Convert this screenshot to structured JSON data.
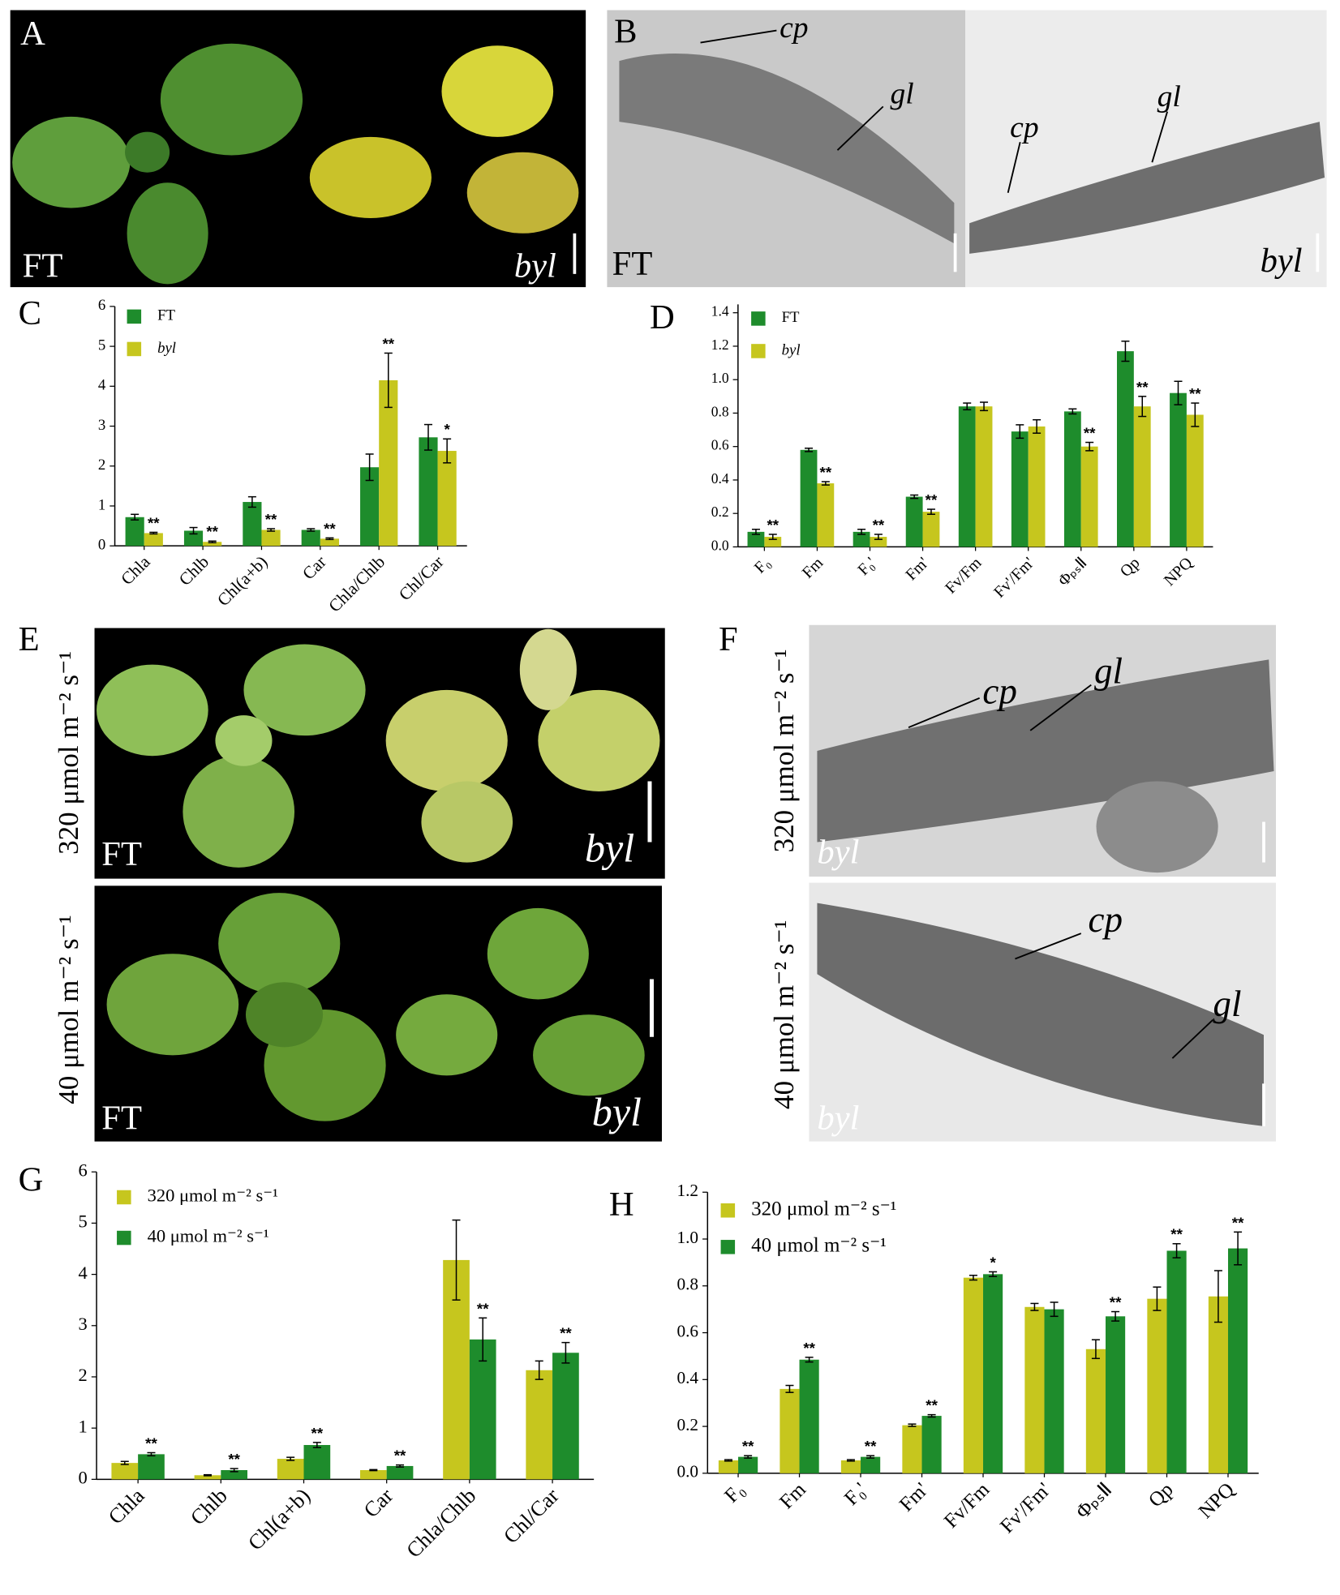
{
  "chart_data": [
    {
      "type": "bar",
      "panel": "C",
      "categories": [
        "Chla",
        "Chlb",
        "Chl(a+b)",
        "Car",
        "Chla/Chlb",
        "Chl/Car"
      ],
      "series": [
        {
          "name": "FT",
          "color": "#1e8c2c",
          "values": [
            0.72,
            0.38,
            1.1,
            0.4,
            1.97,
            2.72
          ],
          "errors": [
            0.07,
            0.08,
            0.13,
            0.03,
            0.33,
            0.32
          ],
          "significance": [
            null,
            null,
            null,
            null,
            null,
            null
          ]
        },
        {
          "name": "byl",
          "font_style": "italic",
          "color": "#c6c61e",
          "values": [
            0.32,
            0.1,
            0.4,
            0.18,
            4.15,
            2.38
          ],
          "errors": [
            0.02,
            0.02,
            0.03,
            0.02,
            0.68,
            0.3
          ],
          "significance": [
            "**",
            "**",
            "**",
            "**",
            "**",
            "*"
          ]
        }
      ],
      "ylim": [
        0,
        6
      ],
      "yticks": [
        0,
        1,
        2,
        3,
        4,
        5,
        6
      ]
    },
    {
      "type": "bar",
      "panel": "D",
      "categories": [
        "F₀",
        "Fm",
        "F₀'",
        "Fm'",
        "Fv/Fm",
        "Fv'/Fm'",
        "ΦₚₛⅡ",
        "Qp",
        "NPQ"
      ],
      "series": [
        {
          "name": "FT",
          "color": "#1e8c2c",
          "values": [
            0.09,
            0.58,
            0.09,
            0.3,
            0.84,
            0.69,
            0.81,
            1.17,
            0.92
          ],
          "errors": [
            0.015,
            0.01,
            0.015,
            0.01,
            0.02,
            0.04,
            0.015,
            0.06,
            0.07
          ],
          "significance": [
            null,
            null,
            null,
            null,
            null,
            null,
            null,
            null,
            null
          ]
        },
        {
          "name": "byl",
          "font_style": "italic",
          "color": "#c6c61e",
          "values": [
            0.06,
            0.38,
            0.06,
            0.21,
            0.84,
            0.72,
            0.6,
            0.84,
            0.79
          ],
          "errors": [
            0.015,
            0.01,
            0.015,
            0.015,
            0.025,
            0.04,
            0.025,
            0.06,
            0.07
          ],
          "significance": [
            "**",
            "**",
            "**",
            "**",
            null,
            null,
            "**",
            "**",
            "**"
          ]
        }
      ],
      "ylim": [
        0,
        1.45
      ],
      "yticks": [
        {
          "value": 0,
          "label": "0.0"
        },
        0.2,
        0.4,
        0.6,
        0.8,
        {
          "value": 1,
          "label": "1.0"
        },
        1.2,
        1.4
      ]
    },
    {
      "type": "bar",
      "panel": "G",
      "categories": [
        "Chla",
        "Chlb",
        "Chl(a+b)",
        "Car",
        "Chla/Chlb",
        "Chl/Car"
      ],
      "series": [
        {
          "name": "320 μmol m⁻² s⁻¹",
          "color": "#c6c61e",
          "values": [
            0.32,
            0.08,
            0.4,
            0.18,
            4.28,
            2.13
          ],
          "errors": [
            0.03,
            0.01,
            0.03,
            0.01,
            0.78,
            0.18
          ],
          "significance": [
            null,
            null,
            null,
            null,
            null,
            null
          ]
        },
        {
          "name": "40 μmol m⁻² s⁻¹",
          "color": "#1e8c2c",
          "values": [
            0.49,
            0.18,
            0.67,
            0.26,
            2.73,
            2.47
          ],
          "errors": [
            0.03,
            0.03,
            0.05,
            0.02,
            0.42,
            0.2
          ],
          "significance": [
            "**",
            "**",
            "**",
            "**",
            "**",
            "**"
          ]
        }
      ],
      "ylim": [
        0,
        6
      ],
      "yticks": [
        0,
        1,
        2,
        3,
        4,
        5,
        6
      ]
    },
    {
      "type": "bar",
      "panel": "H",
      "categories": [
        "F₀",
        "Fm",
        "F₀'",
        "Fm'",
        "Fv/Fm",
        "Fv'/Fm'",
        "ΦₚₛⅡ",
        "Qp",
        "NPQ"
      ],
      "series": [
        {
          "name": "320 μmol m⁻² s⁻¹",
          "color": "#c6c61e",
          "values": [
            0.055,
            0.36,
            0.055,
            0.205,
            0.835,
            0.71,
            0.53,
            0.745,
            0.755
          ],
          "errors": [
            0.003,
            0.015,
            0.003,
            0.005,
            0.01,
            0.015,
            0.04,
            0.05,
            0.11
          ],
          "significance": [
            null,
            null,
            null,
            null,
            null,
            null,
            null,
            null,
            null
          ]
        },
        {
          "name": "40 μmol m⁻² s⁻¹",
          "color": "#1e8c2c",
          "values": [
            0.07,
            0.485,
            0.07,
            0.245,
            0.85,
            0.7,
            0.67,
            0.95,
            0.96
          ],
          "errors": [
            0.005,
            0.01,
            0.005,
            0.005,
            0.01,
            0.03,
            0.02,
            0.03,
            0.07
          ],
          "significance": [
            "**",
            "**",
            "**",
            "**",
            "*",
            null,
            "**",
            "**",
            "**"
          ]
        }
      ],
      "ylim": [
        0,
        1.2
      ],
      "yticks": [
        {
          "value": 0,
          "label": "0.0"
        },
        0.2,
        0.4,
        0.6,
        0.8,
        {
          "value": 1,
          "label": "1.0"
        },
        1.2
      ]
    }
  ],
  "images": {
    "A": {
      "letter": "A",
      "left": "FT",
      "right": "byl"
    },
    "B": {
      "letter": "B",
      "left": "FT",
      "right": "byl",
      "left_cp": "cp",
      "left_gl": "gl",
      "right_gl": "gl",
      "right_cp": "cp"
    },
    "E": {
      "letter": "E",
      "top_condition": "320 μmol m⁻² s⁻¹",
      "top_left": "FT",
      "top_right": "byl",
      "bottom_condition": "40 μmol m⁻² s⁻¹",
      "bottom_left": "FT",
      "bottom_right": "byl"
    },
    "F": {
      "letter": "F",
      "top_condition": "320 μmol m⁻² s⁻¹",
      "top_label": "byl",
      "top_cp": "cp",
      "top_gl": "gl",
      "bottom_condition": "40 μmol m⁻² s⁻¹",
      "bottom_label": "byl",
      "bottom_cp": "cp",
      "bottom_gl": "gl"
    }
  }
}
